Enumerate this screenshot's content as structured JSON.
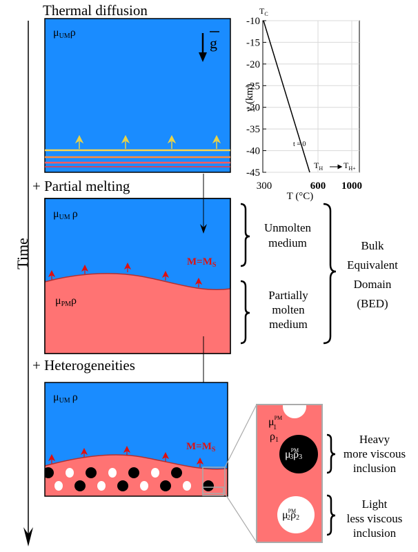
{
  "time_label": "Time",
  "panel1": {
    "title": "Thermal diffusion",
    "mu": "μ",
    "mu_sub": "UM",
    "rho": "ρ",
    "gravity_symbol": "g"
  },
  "inset_chart": {
    "type": "line",
    "ylabel": "y (km)",
    "xlabel": "T (°C)",
    "y_ticks": [
      "-10",
      "-15",
      "-20",
      "-25",
      "-30",
      "-35",
      "-40",
      "-45"
    ],
    "x_ticks": [
      "300",
      "600",
      "1000"
    ],
    "tc_main": "T",
    "tc_sub": "C",
    "th_main": "T",
    "th_sub": "H",
    "thplus_main": "T",
    "thplus_sub": "H+",
    "curve_label": "t = 0",
    "chart_data": {
      "type": "line",
      "x": [
        300,
        570
      ],
      "y": [
        -10,
        -45
      ],
      "xlim": [
        300,
        1000
      ],
      "ylim": [
        -45,
        -10
      ]
    }
  },
  "panel2": {
    "title": "+ Partial melting",
    "mu": "μ",
    "mu_sub": "UM",
    "rho": "ρ",
    "pm_mu": "μ",
    "pm_sub": "PM",
    "pm_rho": "ρ",
    "melt_label": "M=M",
    "melt_sub": "S",
    "unmolten_line1": "Unmolten",
    "unmolten_line2": "medium",
    "partial_line1": "Partially",
    "partial_line2": "molten",
    "partial_line3": "medium",
    "bed_line1": "Bulk",
    "bed_line2": "Equivalent",
    "bed_line3": "Domain",
    "bed_line4": "(BED)"
  },
  "panel3": {
    "title": "+ Heterogeneities",
    "mu": "μ",
    "mu_sub": "UM",
    "rho": "ρ",
    "melt_label": "M=M",
    "melt_sub": "S"
  },
  "zoom": {
    "mu1": "μ",
    "mu1_sup": "PM",
    "mu1_sub": "1",
    "rho1": "ρ",
    "rho1_sub": "1",
    "mu3": "μ",
    "mu3_sup": "PM",
    "mu3_sub": "3",
    "rho3": "ρ",
    "rho3_sub": "3",
    "mu2": "μ",
    "mu2_sup": "PM",
    "mu2_sub": "2",
    "rho2": "ρ",
    "rho2_sub": "2",
    "heavy_line1": "Heavy",
    "heavy_line2": "more viscous",
    "heavy_line3": "inclusion",
    "light_line1": "Light",
    "light_line2": "less viscous",
    "light_line3": "inclusion"
  },
  "colors": {
    "mantle_blue": "#1a8cff",
    "partial_melt": "#ff7373",
    "melt_arrow_red": "#dd1111",
    "thermal_arrow_yellow": "#e8d24a"
  }
}
